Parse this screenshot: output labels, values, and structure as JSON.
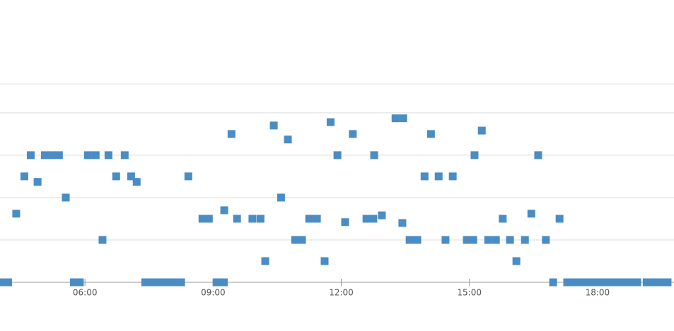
{
  "chart_data": {
    "type": "scatter",
    "x": [
      4.06,
      4.2,
      4.39,
      4.58,
      4.73,
      4.89,
      5.06,
      5.22,
      5.39,
      5.55,
      5.74,
      5.88,
      6.07,
      6.25,
      6.41,
      6.55,
      6.73,
      6.93,
      7.08,
      7.21,
      7.41,
      7.57,
      7.74,
      7.9,
      8.07,
      8.25,
      8.42,
      8.75,
      8.9,
      9.08,
      9.25,
      9.26,
      9.43,
      9.56,
      9.92,
      10.11,
      10.22,
      10.42,
      10.59,
      10.75,
      10.92,
      11.08,
      11.25,
      11.43,
      11.61,
      11.75,
      11.91,
      12.09,
      12.27,
      12.59,
      12.75,
      12.77,
      12.95,
      13.27,
      13.45,
      13.43,
      13.6,
      13.78,
      13.95,
      14.1,
      14.28,
      14.44,
      14.61,
      14.94,
      15.09,
      15.12,
      15.29,
      15.44,
      15.62,
      15.78,
      15.95,
      16.1,
      16.3,
      16.45,
      16.61,
      16.79,
      16.96,
      17.11,
      17.29,
      17.46,
      17.62,
      17.79,
      17.95,
      18.12,
      18.28,
      18.45,
      18.62,
      18.78,
      18.93,
      19.15,
      19.31,
      19.48,
      19.64
    ],
    "values": [
      0,
      0,
      1.62,
      2.5,
      3,
      2.37,
      3,
      3,
      3,
      2,
      0,
      0,
      3,
      3,
      1,
      3,
      2.5,
      3,
      2.5,
      2.37,
      0,
      0,
      0,
      0,
      0,
      0,
      2.5,
      1.5,
      1.5,
      0,
      0,
      1.7,
      3.5,
      1.5,
      1.5,
      1.5,
      0.5,
      3.7,
      2,
      3.37,
      1,
      1,
      1.5,
      1.5,
      0.5,
      3.78,
      3,
      1.42,
      3.5,
      1.5,
      1.5,
      3,
      1.58,
      3.87,
      3.87,
      1.4,
      1,
      1,
      2.5,
      3.5,
      2.5,
      1,
      2.5,
      1,
      1,
      3,
      3.58,
      1,
      1,
      1.5,
      1,
      0.5,
      1,
      1.62,
      3,
      1,
      0,
      1.5,
      0,
      0,
      0,
      0,
      0,
      0,
      0,
      0,
      0,
      0,
      0,
      0,
      0,
      0,
      0
    ],
    "color": "#4a8cc4",
    "xlim": [
      4.01,
      19.79
    ],
    "xticks": [
      {
        "value": 6,
        "label": "06:00"
      },
      {
        "value": 9,
        "label": "09:00"
      },
      {
        "value": 12,
        "label": "12:00"
      },
      {
        "value": 15,
        "label": "15:00"
      },
      {
        "value": 18,
        "label": "18:00"
      }
    ],
    "ylim": [
      0,
      4.68
    ],
    "yticks": [
      0,
      1,
      2,
      3,
      4
    ],
    "grid": true
  }
}
